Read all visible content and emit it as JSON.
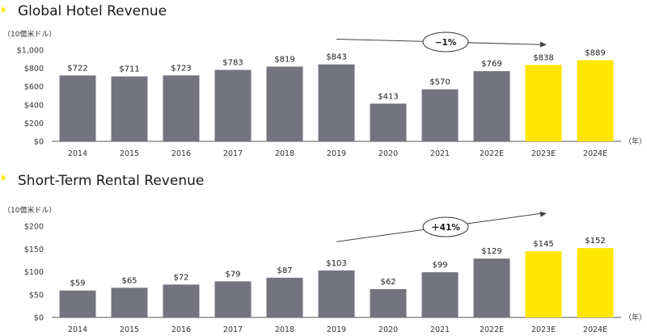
{
  "colors": {
    "actual": "#747480",
    "forecast": "#FFE600",
    "marker": "#FFE600"
  },
  "chart_data": [
    {
      "type": "bar",
      "title": "Global Hotel Revenue",
      "unit_label": "（10億米ドル）",
      "year_label": "（年）",
      "categories": [
        "2014",
        "2015",
        "2016",
        "2017",
        "2018",
        "2019",
        "2020",
        "2021",
        "2022E",
        "2023E",
        "2024E"
      ],
      "values": [
        722,
        711,
        723,
        783,
        819,
        843,
        413,
        570,
        769,
        838,
        889
      ],
      "value_labels": [
        "$722",
        "$711",
        "$723",
        "$783",
        "$819",
        "$843",
        "$413",
        "$570",
        "$769",
        "$838",
        "$889"
      ],
      "forecast_flags": [
        false,
        false,
        false,
        false,
        false,
        false,
        false,
        false,
        false,
        true,
        true
      ],
      "ylim": [
        0,
        1000
      ],
      "yticks": [
        0,
        200,
        400,
        600,
        800,
        1000
      ],
      "ytick_labels": [
        "$0",
        "$200",
        "$400",
        "$600",
        "$800",
        "$1,000"
      ],
      "callout": "−1%",
      "callout_from": "2019",
      "callout_to": "2023E",
      "callout_start_value": 1120,
      "callout_end_value": 1060
    },
    {
      "type": "bar",
      "title": "Short-Term Rental Revenue",
      "unit_label": "（10億米ドル）",
      "year_label": "（年）",
      "categories": [
        "2014",
        "2015",
        "2016",
        "2017",
        "2018",
        "2019",
        "2020",
        "2021",
        "2022E",
        "2023E",
        "2024E"
      ],
      "values": [
        59,
        65,
        72,
        79,
        87,
        103,
        62,
        99,
        129,
        145,
        152
      ],
      "value_labels": [
        "$59",
        "$65",
        "$72",
        "$79",
        "$87",
        "$103",
        "$62",
        "$99",
        "$129",
        "$145",
        "$152"
      ],
      "forecast_flags": [
        false,
        false,
        false,
        false,
        false,
        false,
        false,
        false,
        false,
        true,
        true
      ],
      "ylim": [
        0,
        200
      ],
      "yticks": [
        0,
        50,
        100,
        150,
        200
      ],
      "ytick_labels": [
        "$0",
        "$50",
        "$100",
        "$150",
        "$200"
      ],
      "callout": "＋41%",
      "callout_from": "2019",
      "callout_to": "2023E",
      "callout_start_value": 166,
      "callout_end_value": 228
    }
  ]
}
